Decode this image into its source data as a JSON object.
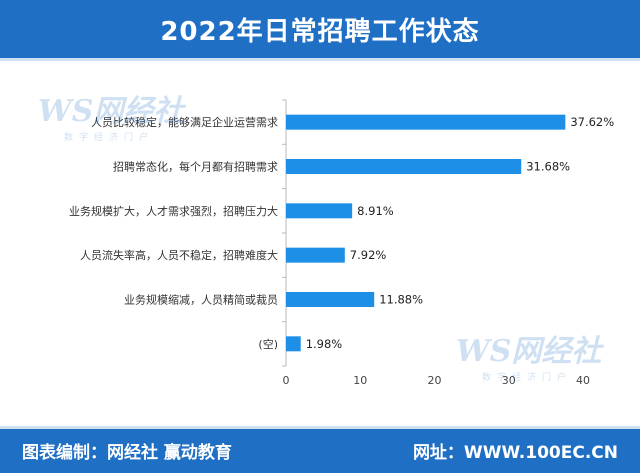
{
  "header": {
    "title": "2022年日常招聘工作状态"
  },
  "footer": {
    "left": "图表编制：网经社 赢动教育",
    "right": "网址：WWW.100EC.CN"
  },
  "watermark": {
    "logo": "WS网经社",
    "sub": "数字经济门户"
  },
  "colors": {
    "header": "#1f6fc5",
    "bar": "#1e8fe6",
    "axis": "#b9b9b9"
  },
  "chart_data": {
    "type": "bar",
    "orientation": "horizontal",
    "categories": [
      "人员比较稳定，能够满足企业运营需求",
      "招聘常态化，每个月都有招聘需求",
      "业务规模扩大，人才需求强烈，招聘压力大",
      "人员流失率高，人员不稳定，招聘难度大",
      "业务规模缩减，人员精简或裁员",
      "(空)"
    ],
    "values": [
      37.62,
      31.68,
      8.91,
      7.92,
      11.88,
      1.98
    ],
    "value_labels": [
      "37.62%",
      "31.68%",
      "8.91%",
      "7.92%",
      "11.88%",
      "1.98%"
    ],
    "xlim": [
      0,
      40
    ],
    "xticks": [
      "0",
      "10",
      "20",
      "30",
      "40"
    ],
    "grid": false,
    "title": "",
    "xlabel": "",
    "ylabel": ""
  }
}
